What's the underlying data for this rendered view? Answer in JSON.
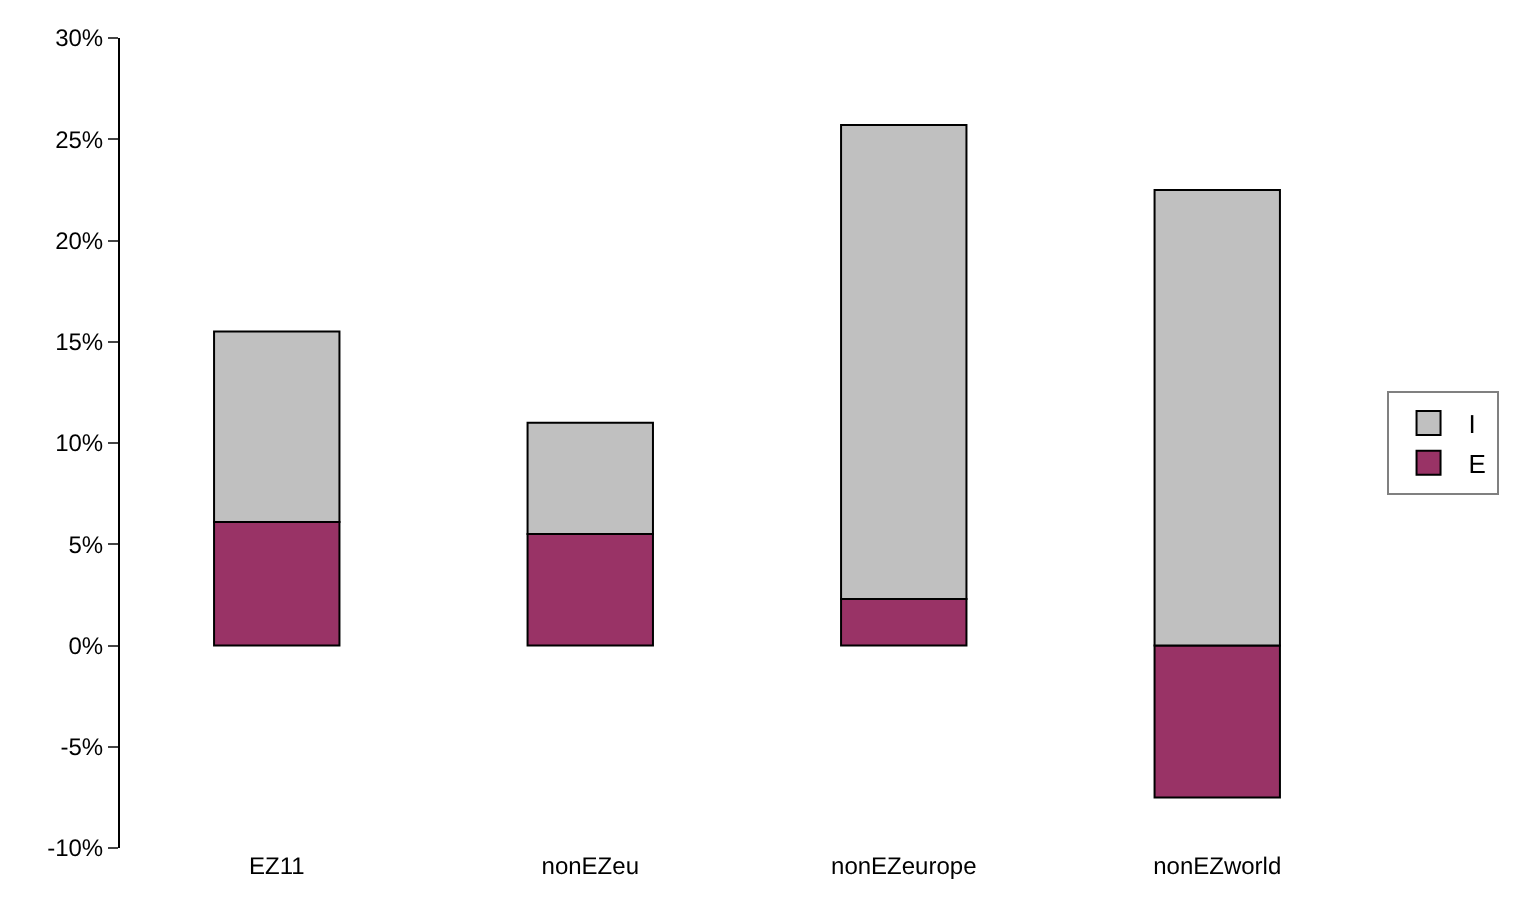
{
  "chart_data": {
    "type": "bar",
    "stacked": true,
    "categories": [
      "EZ11",
      "nonEZeu",
      "nonEZeurope",
      "nonEZworld"
    ],
    "series": [
      {
        "name": "E",
        "color": "#993366",
        "values": [
          6.1,
          5.5,
          2.3,
          -7.5
        ]
      },
      {
        "name": "I",
        "color": "#c0c0c0",
        "values": [
          9.4,
          5.5,
          23.4,
          22.5
        ]
      }
    ],
    "ylim": [
      -10,
      30
    ],
    "yticks": [
      {
        "value": -10,
        "label": "-10%"
      },
      {
        "value": -5,
        "label": "-5%"
      },
      {
        "value": 0,
        "label": "0%"
      },
      {
        "value": 5,
        "label": "5%"
      },
      {
        "value": 10,
        "label": "10%"
      },
      {
        "value": 15,
        "label": "15%"
      },
      {
        "value": 20,
        "label": "20%"
      },
      {
        "value": 25,
        "label": "25%"
      },
      {
        "value": 30,
        "label": "30%"
      }
    ],
    "legend": "right"
  }
}
